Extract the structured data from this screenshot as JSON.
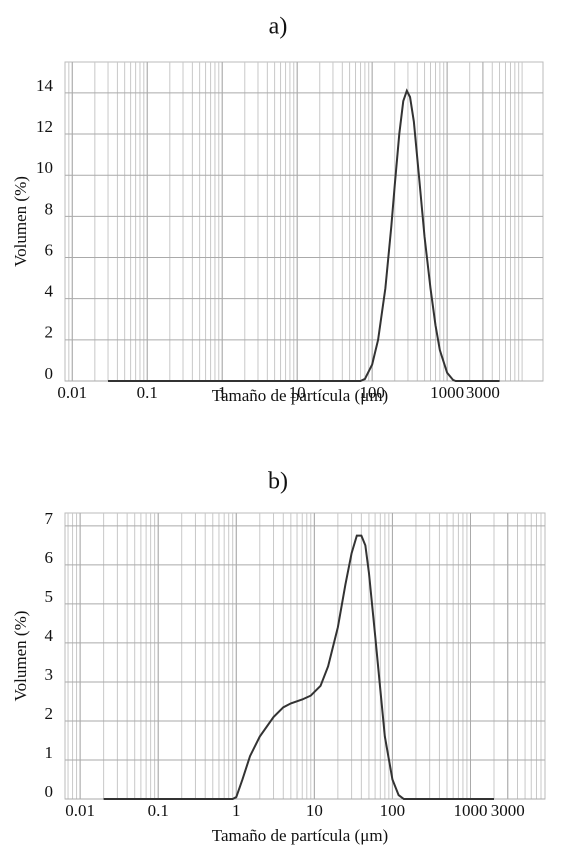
{
  "chart_data": [
    {
      "type": "line",
      "title": "a)",
      "x_label": "Tamaño de partícula (μm)",
      "y_label": "Volumen (%)",
      "x_scale": "log",
      "grid": true,
      "color": "#333333",
      "xlim": [
        0.008,
        19000
      ],
      "xticks": [
        0.01,
        0.1,
        1,
        10,
        100,
        1000,
        3000
      ],
      "ylim": [
        0,
        15.5
      ],
      "yticks": [
        0,
        2,
        4,
        6,
        8,
        10,
        12,
        14
      ],
      "x": [
        0.03,
        70,
        80,
        100,
        120,
        150,
        180,
        200,
        230,
        260,
        290,
        320,
        360,
        420,
        500,
        600,
        700,
        800,
        1000,
        1200,
        1300,
        5000
      ],
      "values": [
        0,
        0,
        0.1,
        0.8,
        2,
        4.5,
        7.5,
        9.5,
        12,
        13.6,
        14.1,
        13.8,
        12.6,
        10,
        7,
        4.5,
        2.7,
        1.5,
        0.4,
        0.05,
        0,
        0
      ]
    },
    {
      "type": "line",
      "title": "b)",
      "x_label": "Tamaño de partícula (μm)",
      "y_label": "Volumen (%)",
      "x_scale": "log",
      "grid": true,
      "color": "#333333",
      "xlim": [
        0.0064,
        9000
      ],
      "xticks": [
        0.01,
        0.1,
        1,
        10,
        100,
        1000,
        3000
      ],
      "ylim": [
        0,
        7.33
      ],
      "yticks": [
        0,
        1,
        2,
        3,
        4,
        5,
        6,
        7
      ],
      "x": [
        0.02,
        0.9,
        1,
        1.2,
        1.5,
        2,
        3,
        4,
        5,
        7,
        9,
        12,
        15,
        20,
        25,
        30,
        35,
        40,
        45,
        50,
        60,
        70,
        80,
        100,
        120,
        140,
        2000
      ],
      "values": [
        0,
        0,
        0.05,
        0.5,
        1.1,
        1.6,
        2.1,
        2.35,
        2.45,
        2.55,
        2.65,
        2.9,
        3.4,
        4.4,
        5.5,
        6.3,
        6.75,
        6.75,
        6.5,
        5.8,
        4.2,
        2.8,
        1.6,
        0.5,
        0.1,
        0,
        0
      ]
    }
  ]
}
